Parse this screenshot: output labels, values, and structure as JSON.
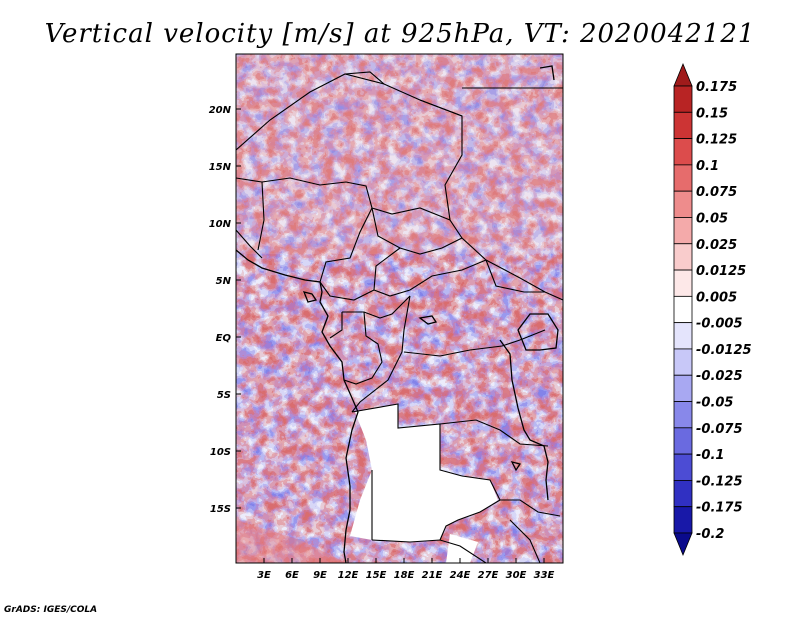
{
  "title": "Vertical velocity [m/s] at 925hPa, VT: 2020042121",
  "credit": "GrADS: IGES/COLA",
  "map": {
    "variable": "Vertical velocity",
    "units": "m/s",
    "level": "925hPa",
    "valid_time": "2020042121",
    "lat_labels": [
      "20N",
      "15N",
      "10N",
      "5N",
      "EQ",
      "5S",
      "10S",
      "15S"
    ],
    "lon_labels": [
      "3E",
      "6E",
      "9E",
      "12E",
      "15E",
      "18E",
      "21E",
      "24E",
      "27E",
      "30E",
      "33E"
    ]
  },
  "colorbar": {
    "labels": [
      "0.175",
      "0.15",
      "0.125",
      "0.1",
      "0.075",
      "0.05",
      "0.025",
      "0.0125",
      "0.005",
      "-0.005",
      "-0.0125",
      "-0.025",
      "-0.05",
      "-0.075",
      "-0.1",
      "-0.125",
      "-0.175",
      "-0.2"
    ],
    "colors": [
      "#a01b1b",
      "#b82424",
      "#cc3434",
      "#dc4c4c",
      "#e66c6c",
      "#ee8c8c",
      "#f4aaaa",
      "#f9cccc",
      "#fde8e8",
      "#ffffff",
      "#e4e4fc",
      "#c8c8f8",
      "#a8a8f2",
      "#8888ea",
      "#6a6ae0",
      "#4c4cd4",
      "#3030c2",
      "#1818a8",
      "#0a0a8c"
    ]
  }
}
